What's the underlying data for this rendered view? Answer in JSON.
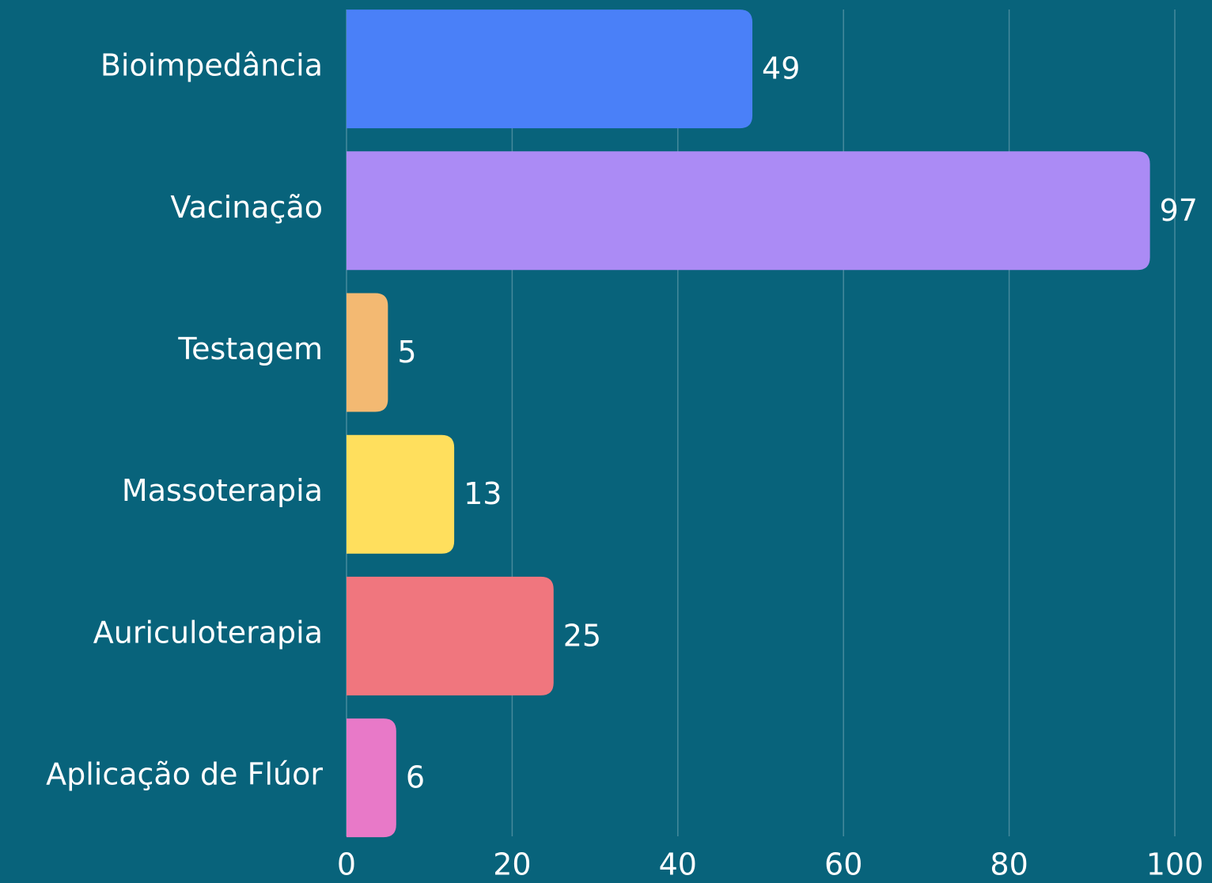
{
  "chart_data": {
    "type": "bar",
    "orientation": "horizontal",
    "categories": [
      "Bioimpedância",
      "Vacinação",
      "Testagem",
      "Massoterapia",
      "Auriculoterapia",
      "Aplicação de Flúor"
    ],
    "values": [
      49,
      97,
      5,
      13,
      25,
      6
    ],
    "colors": [
      "#4a80f8",
      "#ab8bf5",
      "#f3b972",
      "#ffdf5d",
      "#f0767e",
      "#e879c8"
    ],
    "xlim": [
      0,
      100
    ],
    "xticks": [
      0,
      20,
      40,
      60,
      80,
      100
    ],
    "grid": true
  }
}
